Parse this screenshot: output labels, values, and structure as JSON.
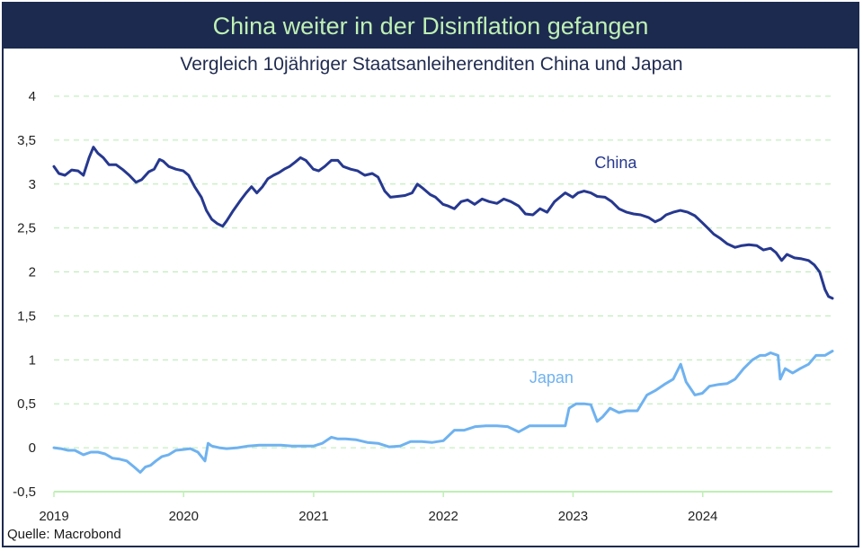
{
  "header": {
    "title": "China weiter in der Disinflation gefangen",
    "subtitle": "Vergleich 10jähriger Staatsanleiherenditen China und Japan",
    "source": "Quelle: Macrobond"
  },
  "colors": {
    "title_bg": "#1c2a4f",
    "title_text": "#bff0b4",
    "china": "#26388f",
    "japan": "#6fb2f0",
    "grid": "#b6ecb0",
    "xaxis": "#bff0b4"
  },
  "chart_data": {
    "type": "line",
    "title": "Vergleich 10jähriger Staatsanleiherenditen China und Japan",
    "xlabel": "",
    "ylabel": "",
    "ylim": [
      -0.5,
      4
    ],
    "xlim": [
      "2019-01-01",
      "2024-12-31"
    ],
    "grid": true,
    "yticks": [
      "-0,5",
      "0",
      "0,5",
      "1",
      "1,5",
      "2",
      "2,5",
      "3",
      "3,5",
      "4"
    ],
    "xticks": [
      "2019",
      "2020",
      "2021",
      "2022",
      "2023",
      "2024"
    ],
    "series": [
      {
        "name": "China",
        "points": [
          [
            "2019-01-01",
            3.2
          ],
          [
            "2019-01-15",
            3.12
          ],
          [
            "2019-02-01",
            3.1
          ],
          [
            "2019-02-20",
            3.16
          ],
          [
            "2019-03-10",
            3.15
          ],
          [
            "2019-03-25",
            3.1
          ],
          [
            "2019-04-10",
            3.3
          ],
          [
            "2019-04-22",
            3.42
          ],
          [
            "2019-05-05",
            3.35
          ],
          [
            "2019-05-20",
            3.3
          ],
          [
            "2019-06-05",
            3.22
          ],
          [
            "2019-06-25",
            3.22
          ],
          [
            "2019-07-15",
            3.16
          ],
          [
            "2019-08-01",
            3.1
          ],
          [
            "2019-08-20",
            3.02
          ],
          [
            "2019-09-05",
            3.05
          ],
          [
            "2019-09-25",
            3.14
          ],
          [
            "2019-10-10",
            3.17
          ],
          [
            "2019-10-25",
            3.28
          ],
          [
            "2019-11-05",
            3.26
          ],
          [
            "2019-11-20",
            3.2
          ],
          [
            "2019-12-10",
            3.17
          ],
          [
            "2019-12-31",
            3.15
          ],
          [
            "2020-01-15",
            3.1
          ],
          [
            "2020-02-01",
            2.97
          ],
          [
            "2020-02-20",
            2.85
          ],
          [
            "2020-03-05",
            2.7
          ],
          [
            "2020-03-20",
            2.6
          ],
          [
            "2020-04-05",
            2.55
          ],
          [
            "2020-04-20",
            2.52
          ],
          [
            "2020-05-01",
            2.58
          ],
          [
            "2020-05-20",
            2.7
          ],
          [
            "2020-06-10",
            2.82
          ],
          [
            "2020-06-25",
            2.9
          ],
          [
            "2020-07-10",
            2.97
          ],
          [
            "2020-07-25",
            2.9
          ],
          [
            "2020-08-10",
            2.97
          ],
          [
            "2020-08-25",
            3.06
          ],
          [
            "2020-09-10",
            3.1
          ],
          [
            "2020-09-25",
            3.13
          ],
          [
            "2020-10-10",
            3.17
          ],
          [
            "2020-10-25",
            3.2
          ],
          [
            "2020-11-10",
            3.25
          ],
          [
            "2020-11-25",
            3.3
          ],
          [
            "2020-12-10",
            3.27
          ],
          [
            "2020-12-31",
            3.17
          ],
          [
            "2021-01-15",
            3.15
          ],
          [
            "2021-02-01",
            3.2
          ],
          [
            "2021-02-20",
            3.27
          ],
          [
            "2021-03-10",
            3.27
          ],
          [
            "2021-03-25",
            3.2
          ],
          [
            "2021-04-15",
            3.17
          ],
          [
            "2021-05-05",
            3.15
          ],
          [
            "2021-05-25",
            3.1
          ],
          [
            "2021-06-15",
            3.12
          ],
          [
            "2021-07-01",
            3.08
          ],
          [
            "2021-07-20",
            2.92
          ],
          [
            "2021-08-05",
            2.85
          ],
          [
            "2021-08-25",
            2.86
          ],
          [
            "2021-09-15",
            2.87
          ],
          [
            "2021-10-05",
            2.9
          ],
          [
            "2021-10-20",
            3.0
          ],
          [
            "2021-11-05",
            2.95
          ],
          [
            "2021-11-25",
            2.88
          ],
          [
            "2021-12-10",
            2.85
          ],
          [
            "2021-12-31",
            2.77
          ],
          [
            "2022-01-15",
            2.75
          ],
          [
            "2022-02-01",
            2.72
          ],
          [
            "2022-02-20",
            2.8
          ],
          [
            "2022-03-10",
            2.82
          ],
          [
            "2022-03-30",
            2.77
          ],
          [
            "2022-04-20",
            2.83
          ],
          [
            "2022-05-10",
            2.8
          ],
          [
            "2022-06-01",
            2.78
          ],
          [
            "2022-06-20",
            2.83
          ],
          [
            "2022-07-10",
            2.8
          ],
          [
            "2022-08-01",
            2.75
          ],
          [
            "2022-08-20",
            2.66
          ],
          [
            "2022-09-10",
            2.65
          ],
          [
            "2022-09-30",
            2.72
          ],
          [
            "2022-10-20",
            2.68
          ],
          [
            "2022-11-10",
            2.8
          ],
          [
            "2022-11-25",
            2.85
          ],
          [
            "2022-12-10",
            2.9
          ],
          [
            "2022-12-31",
            2.85
          ],
          [
            "2023-01-15",
            2.9
          ],
          [
            "2023-02-01",
            2.92
          ],
          [
            "2023-02-20",
            2.9
          ],
          [
            "2023-03-10",
            2.86
          ],
          [
            "2023-04-01",
            2.85
          ],
          [
            "2023-04-20",
            2.8
          ],
          [
            "2023-05-10",
            2.72
          ],
          [
            "2023-06-01",
            2.68
          ],
          [
            "2023-06-20",
            2.66
          ],
          [
            "2023-07-10",
            2.65
          ],
          [
            "2023-08-01",
            2.62
          ],
          [
            "2023-08-20",
            2.57
          ],
          [
            "2023-09-05",
            2.6
          ],
          [
            "2023-09-20",
            2.65
          ],
          [
            "2023-10-10",
            2.68
          ],
          [
            "2023-10-30",
            2.7
          ],
          [
            "2023-11-20",
            2.68
          ],
          [
            "2023-12-10",
            2.64
          ],
          [
            "2023-12-31",
            2.56
          ],
          [
            "2024-01-15",
            2.5
          ],
          [
            "2024-02-01",
            2.43
          ],
          [
            "2024-02-20",
            2.38
          ],
          [
            "2024-03-10",
            2.32
          ],
          [
            "2024-04-01",
            2.28
          ],
          [
            "2024-04-20",
            2.3
          ],
          [
            "2024-05-10",
            2.31
          ],
          [
            "2024-06-01",
            2.3
          ],
          [
            "2024-06-20",
            2.25
          ],
          [
            "2024-07-10",
            2.27
          ],
          [
            "2024-07-25",
            2.22
          ],
          [
            "2024-08-10",
            2.13
          ],
          [
            "2024-08-25",
            2.2
          ],
          [
            "2024-09-15",
            2.16
          ],
          [
            "2024-10-05",
            2.15
          ],
          [
            "2024-10-25",
            2.13
          ],
          [
            "2024-11-10",
            2.08
          ],
          [
            "2024-11-25",
            2.0
          ],
          [
            "2024-12-10",
            1.8
          ],
          [
            "2024-12-20",
            1.72
          ],
          [
            "2024-12-31",
            1.7
          ]
        ]
      },
      {
        "name": "Japan",
        "points": [
          [
            "2019-01-01",
            0.0
          ],
          [
            "2019-01-20",
            -0.01
          ],
          [
            "2019-02-10",
            -0.03
          ],
          [
            "2019-03-01",
            -0.03
          ],
          [
            "2019-03-25",
            -0.08
          ],
          [
            "2019-04-15",
            -0.05
          ],
          [
            "2019-05-05",
            -0.05
          ],
          [
            "2019-05-25",
            -0.07
          ],
          [
            "2019-06-15",
            -0.12
          ],
          [
            "2019-07-05",
            -0.13
          ],
          [
            "2019-07-25",
            -0.15
          ],
          [
            "2019-08-15",
            -0.22
          ],
          [
            "2019-09-01",
            -0.28
          ],
          [
            "2019-09-15",
            -0.22
          ],
          [
            "2019-09-30",
            -0.2
          ],
          [
            "2019-10-15",
            -0.15
          ],
          [
            "2019-11-01",
            -0.1
          ],
          [
            "2019-11-20",
            -0.08
          ],
          [
            "2019-12-10",
            -0.03
          ],
          [
            "2019-12-31",
            -0.02
          ],
          [
            "2020-01-20",
            -0.01
          ],
          [
            "2020-02-10",
            -0.05
          ],
          [
            "2020-03-01",
            -0.15
          ],
          [
            "2020-03-10",
            0.05
          ],
          [
            "2020-03-20",
            0.02
          ],
          [
            "2020-04-10",
            0.0
          ],
          [
            "2020-05-01",
            -0.01
          ],
          [
            "2020-06-01",
            0.0
          ],
          [
            "2020-07-01",
            0.02
          ],
          [
            "2020-08-01",
            0.03
          ],
          [
            "2020-09-01",
            0.03
          ],
          [
            "2020-10-01",
            0.03
          ],
          [
            "2020-11-01",
            0.02
          ],
          [
            "2020-12-01",
            0.02
          ],
          [
            "2021-01-01",
            0.02
          ],
          [
            "2021-01-25",
            0.05
          ],
          [
            "2021-02-20",
            0.12
          ],
          [
            "2021-03-10",
            0.1
          ],
          [
            "2021-04-01",
            0.1
          ],
          [
            "2021-05-01",
            0.09
          ],
          [
            "2021-06-01",
            0.06
          ],
          [
            "2021-07-01",
            0.05
          ],
          [
            "2021-08-01",
            0.01
          ],
          [
            "2021-09-01",
            0.02
          ],
          [
            "2021-10-01",
            0.07
          ],
          [
            "2021-11-01",
            0.07
          ],
          [
            "2021-12-01",
            0.06
          ],
          [
            "2022-01-01",
            0.08
          ],
          [
            "2022-02-01",
            0.2
          ],
          [
            "2022-03-01",
            0.2
          ],
          [
            "2022-04-01",
            0.24
          ],
          [
            "2022-05-01",
            0.25
          ],
          [
            "2022-06-01",
            0.25
          ],
          [
            "2022-07-01",
            0.24
          ],
          [
            "2022-08-01",
            0.18
          ],
          [
            "2022-09-01",
            0.25
          ],
          [
            "2022-10-01",
            0.25
          ],
          [
            "2022-11-01",
            0.25
          ],
          [
            "2022-12-10",
            0.25
          ],
          [
            "2022-12-21",
            0.45
          ],
          [
            "2023-01-10",
            0.5
          ],
          [
            "2023-02-01",
            0.5
          ],
          [
            "2023-02-20",
            0.49
          ],
          [
            "2023-03-10",
            0.3
          ],
          [
            "2023-03-25",
            0.35
          ],
          [
            "2023-04-15",
            0.45
          ],
          [
            "2023-05-10",
            0.4
          ],
          [
            "2023-06-01",
            0.42
          ],
          [
            "2023-07-01",
            0.42
          ],
          [
            "2023-07-28",
            0.6
          ],
          [
            "2023-08-20",
            0.65
          ],
          [
            "2023-09-15",
            0.72
          ],
          [
            "2023-10-10",
            0.78
          ],
          [
            "2023-10-31",
            0.95
          ],
          [
            "2023-11-15",
            0.75
          ],
          [
            "2023-12-10",
            0.6
          ],
          [
            "2023-12-31",
            0.62
          ],
          [
            "2024-01-20",
            0.7
          ],
          [
            "2024-02-15",
            0.72
          ],
          [
            "2024-03-10",
            0.73
          ],
          [
            "2024-04-01",
            0.78
          ],
          [
            "2024-04-25",
            0.9
          ],
          [
            "2024-05-20",
            1.0
          ],
          [
            "2024-06-10",
            1.05
          ],
          [
            "2024-06-25",
            1.05
          ],
          [
            "2024-07-10",
            1.08
          ],
          [
            "2024-07-31",
            1.05
          ],
          [
            "2024-08-06",
            0.78
          ],
          [
            "2024-08-20",
            0.9
          ],
          [
            "2024-09-10",
            0.85
          ],
          [
            "2024-10-01",
            0.9
          ],
          [
            "2024-10-25",
            0.95
          ],
          [
            "2024-11-15",
            1.05
          ],
          [
            "2024-12-10",
            1.05
          ],
          [
            "2024-12-31",
            1.1
          ]
        ]
      }
    ],
    "annotations": [
      {
        "series": "China",
        "date": "2023-05-01",
        "value": 3.18
      },
      {
        "series": "Japan",
        "date": "2022-11-01",
        "value": 0.74
      }
    ]
  }
}
